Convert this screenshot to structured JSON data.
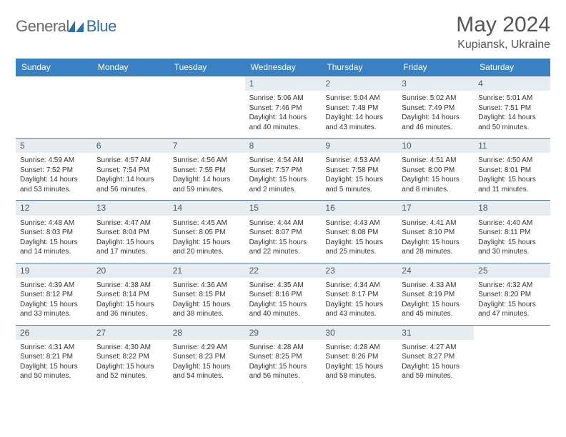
{
  "brand": {
    "part1": "General",
    "part2": "Blue"
  },
  "title": "May 2024",
  "location": "Kupiansk, Ukraine",
  "colors": {
    "header_bg": "#3a81c4",
    "header_text": "#ffffff",
    "daynum_bg": "#e7ecf1",
    "daynum_text": "#4a5a6a",
    "border": "#5b7a99",
    "logo_gray": "#6a6a6a",
    "logo_blue": "#2f6fa8",
    "title_color": "#555555"
  },
  "weekdays": [
    "Sunday",
    "Monday",
    "Tuesday",
    "Wednesday",
    "Thursday",
    "Friday",
    "Saturday"
  ],
  "leading_blanks": 3,
  "trailing_blanks": 1,
  "days": [
    {
      "n": "1",
      "sunrise": "5:06 AM",
      "sunset": "7:46 PM",
      "daylight": "14 hours and 40 minutes."
    },
    {
      "n": "2",
      "sunrise": "5:04 AM",
      "sunset": "7:48 PM",
      "daylight": "14 hours and 43 minutes."
    },
    {
      "n": "3",
      "sunrise": "5:02 AM",
      "sunset": "7:49 PM",
      "daylight": "14 hours and 46 minutes."
    },
    {
      "n": "4",
      "sunrise": "5:01 AM",
      "sunset": "7:51 PM",
      "daylight": "14 hours and 50 minutes."
    },
    {
      "n": "5",
      "sunrise": "4:59 AM",
      "sunset": "7:52 PM",
      "daylight": "14 hours and 53 minutes."
    },
    {
      "n": "6",
      "sunrise": "4:57 AM",
      "sunset": "7:54 PM",
      "daylight": "14 hours and 56 minutes."
    },
    {
      "n": "7",
      "sunrise": "4:56 AM",
      "sunset": "7:55 PM",
      "daylight": "14 hours and 59 minutes."
    },
    {
      "n": "8",
      "sunrise": "4:54 AM",
      "sunset": "7:57 PM",
      "daylight": "15 hours and 2 minutes."
    },
    {
      "n": "9",
      "sunrise": "4:53 AM",
      "sunset": "7:58 PM",
      "daylight": "15 hours and 5 minutes."
    },
    {
      "n": "10",
      "sunrise": "4:51 AM",
      "sunset": "8:00 PM",
      "daylight": "15 hours and 8 minutes."
    },
    {
      "n": "11",
      "sunrise": "4:50 AM",
      "sunset": "8:01 PM",
      "daylight": "15 hours and 11 minutes."
    },
    {
      "n": "12",
      "sunrise": "4:48 AM",
      "sunset": "8:03 PM",
      "daylight": "15 hours and 14 minutes."
    },
    {
      "n": "13",
      "sunrise": "4:47 AM",
      "sunset": "8:04 PM",
      "daylight": "15 hours and 17 minutes."
    },
    {
      "n": "14",
      "sunrise": "4:45 AM",
      "sunset": "8:05 PM",
      "daylight": "15 hours and 20 minutes."
    },
    {
      "n": "15",
      "sunrise": "4:44 AM",
      "sunset": "8:07 PM",
      "daylight": "15 hours and 22 minutes."
    },
    {
      "n": "16",
      "sunrise": "4:43 AM",
      "sunset": "8:08 PM",
      "daylight": "15 hours and 25 minutes."
    },
    {
      "n": "17",
      "sunrise": "4:41 AM",
      "sunset": "8:10 PM",
      "daylight": "15 hours and 28 minutes."
    },
    {
      "n": "18",
      "sunrise": "4:40 AM",
      "sunset": "8:11 PM",
      "daylight": "15 hours and 30 minutes."
    },
    {
      "n": "19",
      "sunrise": "4:39 AM",
      "sunset": "8:12 PM",
      "daylight": "15 hours and 33 minutes."
    },
    {
      "n": "20",
      "sunrise": "4:38 AM",
      "sunset": "8:14 PM",
      "daylight": "15 hours and 36 minutes."
    },
    {
      "n": "21",
      "sunrise": "4:36 AM",
      "sunset": "8:15 PM",
      "daylight": "15 hours and 38 minutes."
    },
    {
      "n": "22",
      "sunrise": "4:35 AM",
      "sunset": "8:16 PM",
      "daylight": "15 hours and 40 minutes."
    },
    {
      "n": "23",
      "sunrise": "4:34 AM",
      "sunset": "8:17 PM",
      "daylight": "15 hours and 43 minutes."
    },
    {
      "n": "24",
      "sunrise": "4:33 AM",
      "sunset": "8:19 PM",
      "daylight": "15 hours and 45 minutes."
    },
    {
      "n": "25",
      "sunrise": "4:32 AM",
      "sunset": "8:20 PM",
      "daylight": "15 hours and 47 minutes."
    },
    {
      "n": "26",
      "sunrise": "4:31 AM",
      "sunset": "8:21 PM",
      "daylight": "15 hours and 50 minutes."
    },
    {
      "n": "27",
      "sunrise": "4:30 AM",
      "sunset": "8:22 PM",
      "daylight": "15 hours and 52 minutes."
    },
    {
      "n": "28",
      "sunrise": "4:29 AM",
      "sunset": "8:23 PM",
      "daylight": "15 hours and 54 minutes."
    },
    {
      "n": "29",
      "sunrise": "4:28 AM",
      "sunset": "8:25 PM",
      "daylight": "15 hours and 56 minutes."
    },
    {
      "n": "30",
      "sunrise": "4:28 AM",
      "sunset": "8:26 PM",
      "daylight": "15 hours and 58 minutes."
    },
    {
      "n": "31",
      "sunrise": "4:27 AM",
      "sunset": "8:27 PM",
      "daylight": "15 hours and 59 minutes."
    }
  ],
  "labels": {
    "sunrise": "Sunrise:",
    "sunset": "Sunset:",
    "daylight": "Daylight:"
  }
}
